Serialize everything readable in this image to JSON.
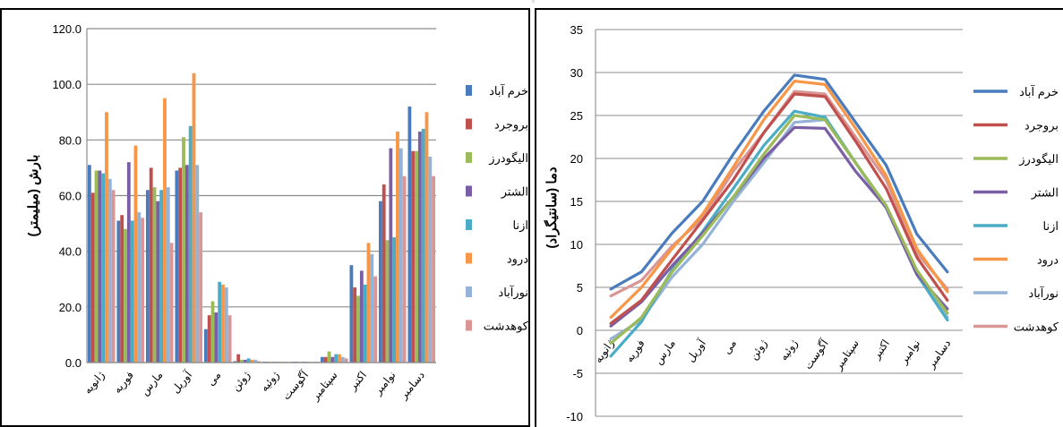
{
  "chart_data": [
    {
      "type": "bar",
      "ylabel": "بارش (میلیمتر)",
      "ylim": [
        0,
        120
      ],
      "yticks": [
        "0.0",
        "20.0",
        "40.0",
        "60.0",
        "80.0",
        "100.0",
        "120.0"
      ],
      "grid": true,
      "legend_position": "right",
      "categories": [
        "ژانویه",
        "فوریه",
        "مارس",
        "آوریل",
        "می",
        "ژوئن",
        "ژوئیه",
        "آگوست",
        "سپتامبر",
        "اکتبر",
        "نوامبر",
        "دسامبر"
      ],
      "series": [
        {
          "name": "خرم آباد",
          "color": "#4a7bbd",
          "values": [
            71,
            51,
            62,
            69,
            12,
            0.5,
            0.3,
            0.3,
            2,
            35,
            58,
            92
          ]
        },
        {
          "name": "بروجرد",
          "color": "#c0504d",
          "values": [
            61,
            53,
            70,
            70,
            17,
            3,
            0.3,
            0.3,
            2,
            27,
            64,
            76
          ]
        },
        {
          "name": "الیگودرز",
          "color": "#9bbb59",
          "values": [
            69,
            48,
            63,
            81,
            22,
            1,
            0.3,
            0.3,
            4,
            24,
            44,
            76
          ]
        },
        {
          "name": "الشتر",
          "color": "#7a5fa6",
          "values": [
            69,
            72,
            58,
            71,
            18,
            1,
            0.3,
            0.3,
            2,
            33,
            77,
            83
          ]
        },
        {
          "name": "ازنا",
          "color": "#4bacc6",
          "values": [
            68,
            51,
            62,
            85,
            29,
            1.5,
            0.3,
            0.3,
            3,
            28,
            45,
            84
          ]
        },
        {
          "name": "درود",
          "color": "#f79646",
          "values": [
            90,
            78,
            95,
            104,
            28,
            1,
            0.3,
            0.3,
            3,
            43,
            83,
            90
          ]
        },
        {
          "name": "نورآباد",
          "color": "#95b3d7",
          "values": [
            66,
            54,
            63,
            71,
            27,
            1,
            0.3,
            0.3,
            2,
            39,
            77,
            74
          ]
        },
        {
          "name": "کوهدشت",
          "color": "#d99694",
          "values": [
            62,
            52,
            43,
            54,
            17,
            0.5,
            0.3,
            0.3,
            1.5,
            31,
            67,
            67
          ]
        }
      ]
    },
    {
      "type": "line",
      "ylabel": "دما (سانتیگراد)",
      "ylim": [
        -10,
        35
      ],
      "yticks": [
        "-10",
        "-5",
        "0",
        "5",
        "10",
        "15",
        "20",
        "25",
        "30",
        "35"
      ],
      "grid": true,
      "legend_position": "right",
      "categories": [
        "ژانویه",
        "فوریه",
        "مارس",
        "آوریل",
        "می",
        "ژوئن",
        "ژوئیه",
        "آگوست",
        "سپتامبر",
        "اکتبر",
        "نوامبر",
        "دسامبر"
      ],
      "series": [
        {
          "name": "خرم آباد",
          "color": "#4a7bbd",
          "values": [
            4.8,
            6.8,
            11.3,
            15.0,
            20.5,
            25.5,
            29.7,
            29.2,
            24.2,
            19.2,
            11.2,
            6.8
          ]
        },
        {
          "name": "بروجرد",
          "color": "#c0504d",
          "values": [
            0.8,
            3.5,
            8.2,
            12.8,
            17.5,
            23.0,
            27.5,
            27.2,
            22.0,
            16.5,
            8.5,
            3.5
          ]
        },
        {
          "name": "الیگودرز",
          "color": "#9bbb59",
          "values": [
            -1.5,
            1.5,
            6.8,
            11.0,
            15.5,
            20.5,
            25.0,
            24.5,
            19.5,
            14.5,
            7.0,
            2.0
          ]
        },
        {
          "name": "الشتر",
          "color": "#7a5fa6",
          "values": [
            0.5,
            3.3,
            7.5,
            11.3,
            15.5,
            20.0,
            23.6,
            23.5,
            18.5,
            14.3,
            6.5,
            2.5
          ]
        },
        {
          "name": "ازنا",
          "color": "#4bacc6",
          "values": [
            -3.0,
            1.0,
            7.0,
            11.5,
            16.5,
            21.5,
            25.5,
            24.8,
            19.5,
            14.5,
            6.5,
            1.2
          ]
        },
        {
          "name": "درود",
          "color": "#f79646",
          "values": [
            1.5,
            5.0,
            9.5,
            13.5,
            19.0,
            24.5,
            29.0,
            28.6,
            23.5,
            18.0,
            9.5,
            4.5
          ]
        },
        {
          "name": "نورآباد",
          "color": "#95b3d7",
          "values": [
            -1.0,
            1.2,
            6.2,
            10.0,
            15.0,
            19.5,
            24.2,
            24.5,
            19.5,
            14.2,
            6.5,
            1.5
          ]
        },
        {
          "name": "کوهدشت",
          "color": "#d99694",
          "values": [
            4.0,
            5.8,
            9.8,
            13.0,
            18.5,
            23.0,
            27.8,
            27.5,
            22.5,
            17.5,
            9.0,
            4.8
          ]
        }
      ]
    }
  ]
}
